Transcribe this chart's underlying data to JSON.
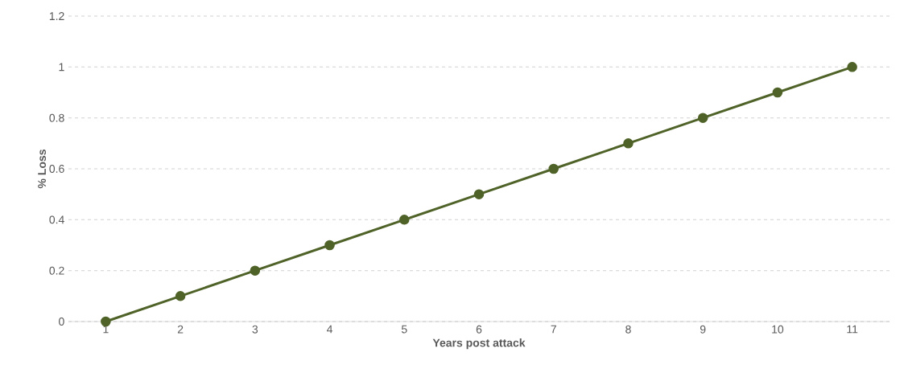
{
  "chart_data": {
    "type": "line",
    "xlabel": "Years post attack",
    "ylabel": "% Loss",
    "categories": [
      "1",
      "2",
      "3",
      "4",
      "5",
      "6",
      "7",
      "8",
      "9",
      "10",
      "11"
    ],
    "values": [
      0,
      0.1,
      0.2,
      0.3,
      0.4,
      0.5,
      0.6,
      0.7,
      0.8,
      0.9,
      1
    ],
    "color": "#4f6228",
    "ylim": [
      0,
      1.2
    ],
    "yticks": [
      0,
      0.2,
      0.4,
      0.6,
      0.8,
      1,
      1.2
    ],
    "grid": "y",
    "marker": "circle",
    "line_style": "solid"
  }
}
